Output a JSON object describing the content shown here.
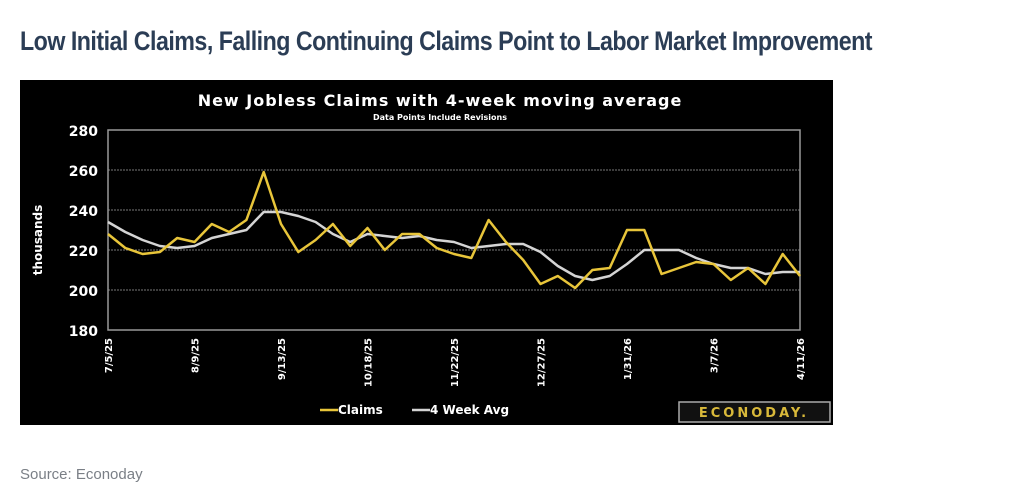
{
  "headline": "Low Initial Claims, Falling Continuing Claims Point to Labor Market Improvement",
  "source": "Source: Econoday",
  "logo_text": "ECONODAY.",
  "chart_data": {
    "type": "line",
    "title": "New Jobless Claims with 4-week moving average",
    "subtitle": "Data Points Include Revisions",
    "ylabel": "thousands",
    "xlabel": "",
    "ylim": [
      180,
      280
    ],
    "yticks": [
      "180",
      "200",
      "220",
      "240",
      "260",
      "280"
    ],
    "grid": true,
    "legend": "bottom-left",
    "x": [
      "7/5/25",
      "7/12/25",
      "7/19/25",
      "7/26/25",
      "8/2/25",
      "8/9/25",
      "8/16/25",
      "8/23/25",
      "8/30/25",
      "9/6/25",
      "9/13/25",
      "9/20/25",
      "9/27/25",
      "10/4/25",
      "10/11/25",
      "10/18/25",
      "10/25/25",
      "11/1/25",
      "11/8/25",
      "11/15/25",
      "11/22/25",
      "11/29/25",
      "12/6/25",
      "12/13/25",
      "12/20/25",
      "12/27/25",
      "1/3/26",
      "1/10/26",
      "1/17/26",
      "1/24/26",
      "1/31/26",
      "2/7/26",
      "2/14/26",
      "2/21/26",
      "2/28/26",
      "3/7/26",
      "3/14/26",
      "3/21/26",
      "3/28/26",
      "4/4/26",
      "4/11/26"
    ],
    "xticks": [
      "7/5/25",
      "8/9/25",
      "9/13/25",
      "10/18/25",
      "11/22/25",
      "12/27/25",
      "1/31/26",
      "3/7/26",
      "4/11/26"
    ],
    "series": [
      {
        "name": "Claims",
        "color": "#e8c53a",
        "values": [
          228,
          221,
          218,
          219,
          226,
          224,
          233,
          229,
          235,
          259,
          233,
          219,
          225,
          233,
          222,
          231,
          220,
          228,
          228,
          221,
          218,
          216,
          235,
          224,
          215,
          203,
          207,
          201,
          210,
          211,
          230,
          230,
          208,
          211,
          214,
          213,
          205,
          211,
          203,
          218,
          207
        ]
      },
      {
        "name": "4 Week Avg",
        "color": "#d4d4d4",
        "values": [
          234,
          229,
          225,
          222,
          221,
          222,
          226,
          228,
          230,
          239,
          239,
          237,
          234,
          228,
          224,
          228,
          227,
          226,
          227,
          225,
          224,
          221,
          222,
          223,
          223,
          219,
          212,
          207,
          205,
          207,
          213,
          220,
          220,
          220,
          216,
          213,
          211,
          211,
          208,
          209,
          209
        ]
      }
    ]
  }
}
